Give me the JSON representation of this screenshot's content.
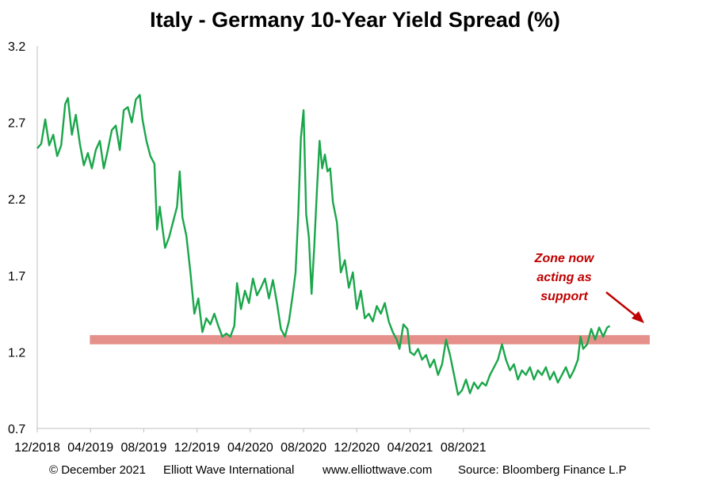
{
  "chart_data": {
    "type": "line",
    "title": "Italy - Germany 10-Year Yield Spread (%)",
    "xlabel": "",
    "ylabel": "",
    "ylim": [
      0.7,
      3.2
    ],
    "yticks": [
      "0.7",
      "1.2",
      "1.7",
      "2.2",
      "2.7",
      "3.2"
    ],
    "xticks": [
      "12/2018",
      "04/2019",
      "08/2019",
      "12/2019",
      "04/2020",
      "08/2020",
      "12/2020",
      "04/2021",
      "08/2021"
    ],
    "grid": false,
    "line_color": "#1aa64a",
    "series": [
      {
        "values": [
          [
            0.0,
            2.53
          ],
          [
            0.3,
            2.56
          ],
          [
            0.6,
            2.72
          ],
          [
            0.9,
            2.55
          ],
          [
            1.2,
            2.62
          ],
          [
            1.5,
            2.48
          ],
          [
            1.8,
            2.55
          ],
          [
            2.1,
            2.82
          ],
          [
            2.3,
            2.86
          ],
          [
            2.6,
            2.62
          ],
          [
            2.9,
            2.75
          ],
          [
            3.2,
            2.56
          ],
          [
            3.5,
            2.42
          ],
          [
            3.8,
            2.5
          ],
          [
            4.1,
            2.4
          ],
          [
            4.4,
            2.52
          ],
          [
            4.7,
            2.58
          ],
          [
            5.0,
            2.4
          ],
          [
            5.3,
            2.52
          ],
          [
            5.6,
            2.65
          ],
          [
            5.9,
            2.68
          ],
          [
            6.2,
            2.52
          ],
          [
            6.5,
            2.78
          ],
          [
            6.8,
            2.8
          ],
          [
            7.1,
            2.7
          ],
          [
            7.4,
            2.85
          ],
          [
            7.7,
            2.88
          ],
          [
            7.9,
            2.72
          ],
          [
            8.2,
            2.58
          ],
          [
            8.5,
            2.48
          ],
          [
            8.8,
            2.43
          ],
          [
            9.0,
            2.0
          ],
          [
            9.2,
            2.15
          ],
          [
            9.6,
            1.88
          ],
          [
            9.9,
            1.95
          ],
          [
            10.2,
            2.05
          ],
          [
            10.5,
            2.15
          ],
          [
            10.7,
            2.38
          ],
          [
            10.9,
            2.08
          ],
          [
            11.2,
            1.96
          ],
          [
            11.5,
            1.72
          ],
          [
            11.8,
            1.45
          ],
          [
            12.1,
            1.55
          ],
          [
            12.4,
            1.33
          ],
          [
            12.7,
            1.42
          ],
          [
            13.0,
            1.38
          ],
          [
            13.3,
            1.45
          ],
          [
            13.6,
            1.37
          ],
          [
            13.9,
            1.3
          ],
          [
            14.2,
            1.32
          ],
          [
            14.5,
            1.3
          ],
          [
            14.8,
            1.37
          ],
          [
            15.0,
            1.65
          ],
          [
            15.3,
            1.48
          ],
          [
            15.6,
            1.6
          ],
          [
            15.9,
            1.52
          ],
          [
            16.2,
            1.68
          ],
          [
            16.5,
            1.57
          ],
          [
            16.8,
            1.62
          ],
          [
            17.1,
            1.68
          ],
          [
            17.4,
            1.55
          ],
          [
            17.7,
            1.67
          ],
          [
            18.0,
            1.52
          ],
          [
            18.3,
            1.35
          ],
          [
            18.6,
            1.3
          ],
          [
            18.9,
            1.4
          ],
          [
            19.2,
            1.58
          ],
          [
            19.4,
            1.72
          ],
          [
            19.6,
            2.1
          ],
          [
            19.8,
            2.6
          ],
          [
            20.0,
            2.78
          ],
          [
            20.2,
            2.1
          ],
          [
            20.4,
            1.95
          ],
          [
            20.6,
            1.58
          ],
          [
            20.8,
            1.88
          ],
          [
            21.0,
            2.25
          ],
          [
            21.2,
            2.58
          ],
          [
            21.4,
            2.4
          ],
          [
            21.6,
            2.49
          ],
          [
            21.8,
            2.38
          ],
          [
            22.0,
            2.4
          ],
          [
            22.2,
            2.18
          ],
          [
            22.5,
            2.05
          ],
          [
            22.8,
            1.72
          ],
          [
            23.1,
            1.8
          ],
          [
            23.4,
            1.62
          ],
          [
            23.7,
            1.72
          ],
          [
            24.0,
            1.48
          ],
          [
            24.3,
            1.6
          ],
          [
            24.6,
            1.42
          ],
          [
            24.9,
            1.45
          ],
          [
            25.2,
            1.4
          ],
          [
            25.5,
            1.5
          ],
          [
            25.8,
            1.45
          ],
          [
            26.1,
            1.52
          ],
          [
            26.4,
            1.4
          ],
          [
            26.7,
            1.33
          ],
          [
            27.0,
            1.28
          ],
          [
            27.2,
            1.22
          ],
          [
            27.5,
            1.38
          ],
          [
            27.8,
            1.35
          ],
          [
            28.0,
            1.2
          ],
          [
            28.3,
            1.18
          ],
          [
            28.6,
            1.22
          ],
          [
            28.9,
            1.15
          ],
          [
            29.2,
            1.18
          ],
          [
            29.5,
            1.1
          ],
          [
            29.8,
            1.15
          ],
          [
            30.1,
            1.05
          ],
          [
            30.4,
            1.12
          ],
          [
            30.7,
            1.28
          ],
          [
            31.0,
            1.18
          ],
          [
            31.3,
            1.05
          ],
          [
            31.6,
            0.92
          ],
          [
            31.9,
            0.95
          ],
          [
            32.2,
            1.02
          ],
          [
            32.5,
            0.93
          ],
          [
            32.8,
            1.0
          ],
          [
            33.1,
            0.96
          ],
          [
            33.4,
            1.0
          ],
          [
            33.7,
            0.98
          ],
          [
            34.0,
            1.05
          ],
          [
            34.3,
            1.1
          ],
          [
            34.6,
            1.15
          ],
          [
            34.9,
            1.25
          ],
          [
            35.2,
            1.15
          ],
          [
            35.5,
            1.08
          ],
          [
            35.8,
            1.12
          ],
          [
            36.1,
            1.02
          ],
          [
            36.4,
            1.08
          ],
          [
            36.7,
            1.05
          ],
          [
            37.0,
            1.1
          ],
          [
            37.3,
            1.02
          ],
          [
            37.6,
            1.08
          ],
          [
            37.9,
            1.05
          ],
          [
            38.2,
            1.1
          ],
          [
            38.5,
            1.02
          ],
          [
            38.8,
            1.07
          ],
          [
            39.1,
            1.0
          ],
          [
            39.4,
            1.05
          ],
          [
            39.7,
            1.1
          ],
          [
            40.0,
            1.03
          ],
          [
            40.3,
            1.08
          ],
          [
            40.6,
            1.15
          ],
          [
            40.8,
            1.3
          ],
          [
            41.0,
            1.22
          ],
          [
            41.3,
            1.25
          ],
          [
            41.6,
            1.35
          ],
          [
            41.9,
            1.28
          ],
          [
            42.2,
            1.36
          ],
          [
            42.5,
            1.3
          ],
          [
            42.8,
            1.36
          ],
          [
            43.0,
            1.37
          ]
        ]
      }
    ],
    "support_zone": {
      "y_low": 1.25,
      "y_high": 1.31,
      "color": "#e5908a",
      "x_start": 3.95,
      "x_end": 46.0
    },
    "annotation": {
      "lines": [
        "Zone now",
        "acting as",
        "support"
      ],
      "color": "#c00000"
    }
  },
  "footer": {
    "copyright": "© December 2021",
    "publisher": "Elliott  Wave International",
    "website": "www.elliottwave.com",
    "source": "Source: Bloomberg  Finance L.P"
  }
}
